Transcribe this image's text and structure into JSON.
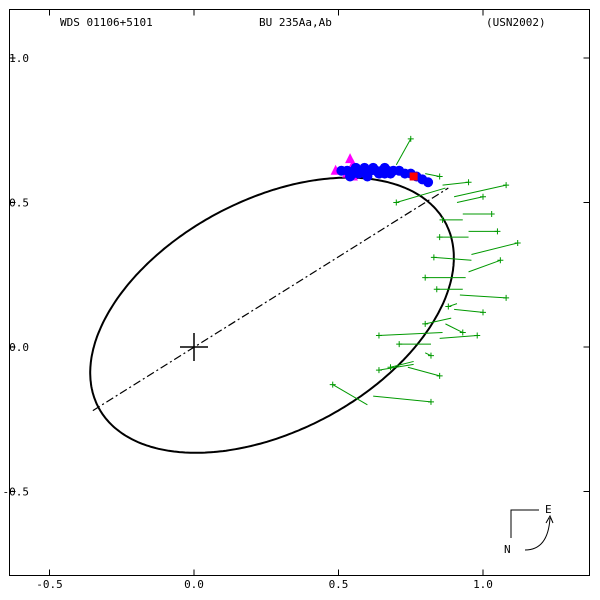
{
  "header": {
    "left": "WDS 01106+5101",
    "center": "BU  235Aa,Ab",
    "right": "(USN2002)"
  },
  "compass": {
    "east_label": "E",
    "north_label": "N"
  },
  "colors": {
    "orbit": "#000000",
    "residual": "#009900",
    "blue": "#0000ff",
    "magenta": "#ff00ff",
    "red": "#ff0000"
  },
  "chart_data": {
    "type": "scatter",
    "title": "",
    "xlabel": "",
    "ylabel": "",
    "xlim": [
      -0.55,
      1.37
    ],
    "ylim": [
      -0.87,
      1.05
    ],
    "x_ticks": [
      {
        "value": -0.5,
        "label": "-0.5"
      },
      {
        "value": 0.0,
        "label": "0.0"
      },
      {
        "value": 0.5,
        "label": "0.5"
      },
      {
        "value": 1.0,
        "label": "1.0"
      }
    ],
    "y_ticks": [
      {
        "value": 1.0,
        "label": "1.0"
      },
      {
        "value": 0.5,
        "label": "0.5"
      },
      {
        "value": 0.0,
        "label": "0.0"
      },
      {
        "value": -0.5,
        "label": "-0.5"
      }
    ],
    "primary": [
      0,
      0
    ],
    "orbit_ellipse": {
      "cx": 0.27,
      "cy": 0.11,
      "rx": 0.68,
      "ry": 0.4,
      "rotation_deg": 28
    },
    "line_of_nodes": [
      [
        -0.35,
        -0.22
      ],
      [
        0.88,
        0.55
      ]
    ],
    "green_measures": [
      {
        "obs": [
          0.75,
          0.72
        ],
        "pred": [
          0.7,
          0.63
        ]
      },
      {
        "obs": [
          0.85,
          0.59
        ],
        "pred": [
          0.8,
          0.6
        ]
      },
      {
        "obs": [
          0.95,
          0.57
        ],
        "pred": [
          0.86,
          0.56
        ]
      },
      {
        "obs": [
          1.08,
          0.56
        ],
        "pred": [
          0.9,
          0.52
        ]
      },
      {
        "obs": [
          0.7,
          0.5
        ],
        "pred": [
          0.87,
          0.55
        ]
      },
      {
        "obs": [
          1.0,
          0.52
        ],
        "pred": [
          0.91,
          0.5
        ]
      },
      {
        "obs": [
          1.03,
          0.46
        ],
        "pred": [
          0.93,
          0.46
        ]
      },
      {
        "obs": [
          0.86,
          0.44
        ],
        "pred": [
          0.93,
          0.44
        ]
      },
      {
        "obs": [
          1.05,
          0.4
        ],
        "pred": [
          0.95,
          0.4
        ]
      },
      {
        "obs": [
          0.85,
          0.38
        ],
        "pred": [
          0.95,
          0.38
        ]
      },
      {
        "obs": [
          1.12,
          0.36
        ],
        "pred": [
          0.96,
          0.32
        ]
      },
      {
        "obs": [
          0.83,
          0.31
        ],
        "pred": [
          0.96,
          0.3
        ]
      },
      {
        "obs": [
          1.06,
          0.3
        ],
        "pred": [
          0.95,
          0.26
        ]
      },
      {
        "obs": [
          0.8,
          0.24
        ],
        "pred": [
          0.94,
          0.24
        ]
      },
      {
        "obs": [
          0.84,
          0.2
        ],
        "pred": [
          0.93,
          0.2
        ]
      },
      {
        "obs": [
          1.08,
          0.17
        ],
        "pred": [
          0.92,
          0.18
        ]
      },
      {
        "obs": [
          0.88,
          0.14
        ],
        "pred": [
          0.91,
          0.15
        ]
      },
      {
        "obs": [
          1.0,
          0.12
        ],
        "pred": [
          0.9,
          0.13
        ]
      },
      {
        "obs": [
          0.8,
          0.08
        ],
        "pred": [
          0.89,
          0.1
        ]
      },
      {
        "obs": [
          0.93,
          0.05
        ],
        "pred": [
          0.87,
          0.08
        ]
      },
      {
        "obs": [
          0.64,
          0.04
        ],
        "pred": [
          0.86,
          0.05
        ]
      },
      {
        "obs": [
          0.98,
          0.04
        ],
        "pred": [
          0.85,
          0.03
        ]
      },
      {
        "obs": [
          0.71,
          0.01
        ],
        "pred": [
          0.82,
          0.01
        ]
      },
      {
        "obs": [
          0.82,
          -0.03
        ],
        "pred": [
          0.8,
          -0.02
        ]
      },
      {
        "obs": [
          0.68,
          -0.07
        ],
        "pred": [
          0.76,
          -0.05
        ]
      },
      {
        "obs": [
          0.85,
          -0.1
        ],
        "pred": [
          0.74,
          -0.07
        ]
      },
      {
        "obs": [
          0.64,
          -0.08
        ],
        "pred": [
          0.76,
          -0.06
        ]
      },
      {
        "obs": [
          0.48,
          -0.13
        ],
        "pred": [
          0.6,
          -0.2
        ]
      },
      {
        "obs": [
          0.82,
          -0.19
        ],
        "pred": [
          0.62,
          -0.17
        ]
      }
    ],
    "blue_points": [
      [
        0.51,
        0.61
      ],
      [
        0.53,
        0.61
      ],
      [
        0.55,
        0.6
      ],
      [
        0.56,
        0.62
      ],
      [
        0.57,
        0.6
      ],
      [
        0.58,
        0.61
      ],
      [
        0.59,
        0.62
      ],
      [
        0.6,
        0.6
      ],
      [
        0.61,
        0.61
      ],
      [
        0.62,
        0.62
      ],
      [
        0.63,
        0.61
      ],
      [
        0.64,
        0.6
      ],
      [
        0.65,
        0.61
      ],
      [
        0.66,
        0.62
      ],
      [
        0.67,
        0.61
      ],
      [
        0.68,
        0.6
      ],
      [
        0.69,
        0.61
      ],
      [
        0.71,
        0.61
      ],
      [
        0.73,
        0.6
      ],
      [
        0.75,
        0.6
      ],
      [
        0.77,
        0.59
      ],
      [
        0.79,
        0.58
      ],
      [
        0.81,
        0.57
      ],
      [
        0.54,
        0.59
      ],
      [
        0.6,
        0.59
      ],
      [
        0.66,
        0.6
      ]
    ],
    "magenta_points": [
      [
        0.49,
        0.61
      ],
      [
        0.54,
        0.65
      ],
      [
        0.55,
        0.63
      ],
      [
        0.53,
        0.6
      ],
      [
        0.55,
        0.59
      ]
    ],
    "red_points": [
      [
        0.76,
        0.59
      ]
    ]
  }
}
